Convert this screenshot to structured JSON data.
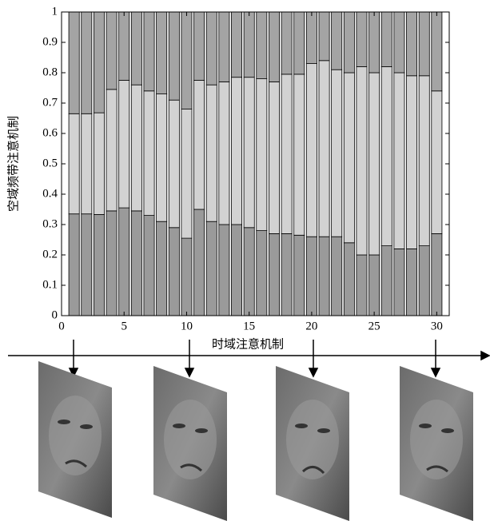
{
  "chart_data": {
    "type": "stacked-bar",
    "xlabel": "时域注意机制",
    "ylabel": "空域频带注意机制",
    "x": [
      1,
      2,
      3,
      4,
      5,
      6,
      7,
      8,
      9,
      10,
      11,
      12,
      13,
      14,
      15,
      16,
      17,
      18,
      19,
      20,
      21,
      22,
      23,
      24,
      25,
      26,
      27,
      28,
      29,
      30
    ],
    "series": [
      {
        "color": "#9a9a9a",
        "values": [
          0.335,
          0.335,
          0.333,
          0.345,
          0.355,
          0.345,
          0.33,
          0.31,
          0.29,
          0.255,
          0.35,
          0.31,
          0.3,
          0.3,
          0.29,
          0.28,
          0.27,
          0.27,
          0.265,
          0.26,
          0.26,
          0.26,
          0.24,
          0.2,
          0.2,
          0.23,
          0.22,
          0.22,
          0.23,
          0.27
        ]
      },
      {
        "color": "#d2d2d2",
        "values": [
          0.33,
          0.33,
          0.335,
          0.4,
          0.42,
          0.415,
          0.41,
          0.42,
          0.42,
          0.425,
          0.425,
          0.45,
          0.47,
          0.485,
          0.495,
          0.5,
          0.5,
          0.525,
          0.53,
          0.57,
          0.58,
          0.55,
          0.56,
          0.62,
          0.6,
          0.59,
          0.58,
          0.57,
          0.56,
          0.47
        ]
      },
      {
        "color": "#a4a4a4",
        "values": [
          0.335,
          0.335,
          0.332,
          0.255,
          0.225,
          0.24,
          0.26,
          0.27,
          0.29,
          0.32,
          0.225,
          0.24,
          0.23,
          0.215,
          0.215,
          0.22,
          0.23,
          0.205,
          0.205,
          0.17,
          0.16,
          0.19,
          0.2,
          0.18,
          0.2,
          0.18,
          0.2,
          0.21,
          0.21,
          0.26
        ]
      }
    ],
    "xlim": [
      0,
      31
    ],
    "xticks": [
      0,
      5,
      10,
      15,
      20,
      25,
      30
    ],
    "ylim": [
      0,
      1
    ],
    "yticks": [
      0,
      0.1,
      0.2,
      0.3,
      0.4,
      0.5,
      0.6,
      0.7,
      0.8,
      0.9,
      1
    ]
  }
}
